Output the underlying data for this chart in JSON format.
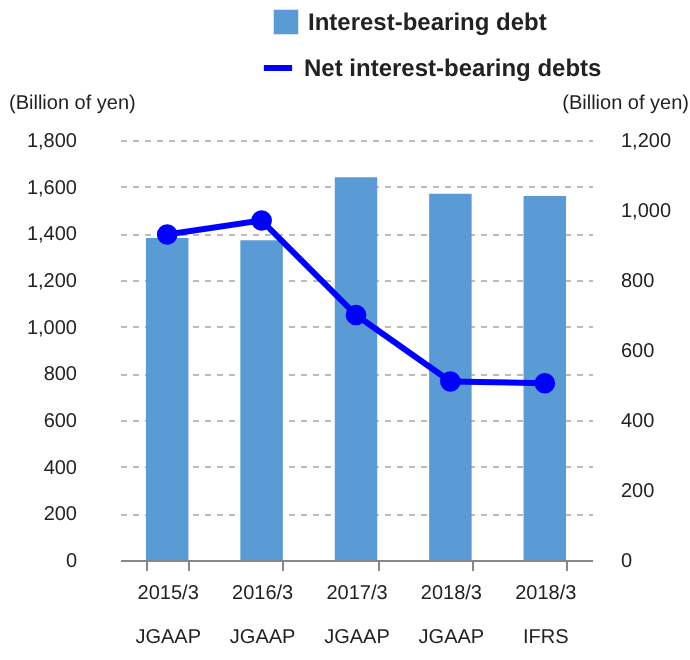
{
  "chart_data": {
    "type": "bar",
    "categories": [
      "2015/3\nJGAAP",
      "2016/3\nJGAAP",
      "2017/3\nJGAAP",
      "2018/3\nJGAAP",
      "2018/3\nIFRS"
    ],
    "series": [
      {
        "name": "Interest-bearing debt",
        "color": "#5b9bd5",
        "values": [
          1380,
          1370,
          1640,
          1570,
          1560
        ]
      },
      {
        "name": "Net interest-bearing debts",
        "type": "line",
        "axis": "y2",
        "color": "#0000ff",
        "values": [
          930,
          970,
          700,
          510,
          505
        ]
      }
    ],
    "ylabel": "(Billion of yen)",
    "y2label": "(Billion of yen)",
    "ylim": [
      0,
      1800
    ],
    "yticks": [
      0,
      200,
      400,
      600,
      800,
      {
        "value": 1000,
        "label": "1,000"
      },
      {
        "value": 1200,
        "label": "1,200"
      },
      {
        "value": 1400,
        "label": "1,400"
      },
      {
        "value": 1600,
        "label": "1,600"
      },
      {
        "value": 1800,
        "label": "1,800"
      }
    ],
    "y2lim": [
      0,
      1200
    ],
    "y2ticks": [
      0,
      200,
      400,
      600,
      800,
      {
        "value": 1000,
        "label": "1,000"
      },
      {
        "value": 1200,
        "label": "1,200"
      }
    ],
    "grid": "y",
    "legend": "top",
    "marker": "circle",
    "line_style": "solid"
  }
}
